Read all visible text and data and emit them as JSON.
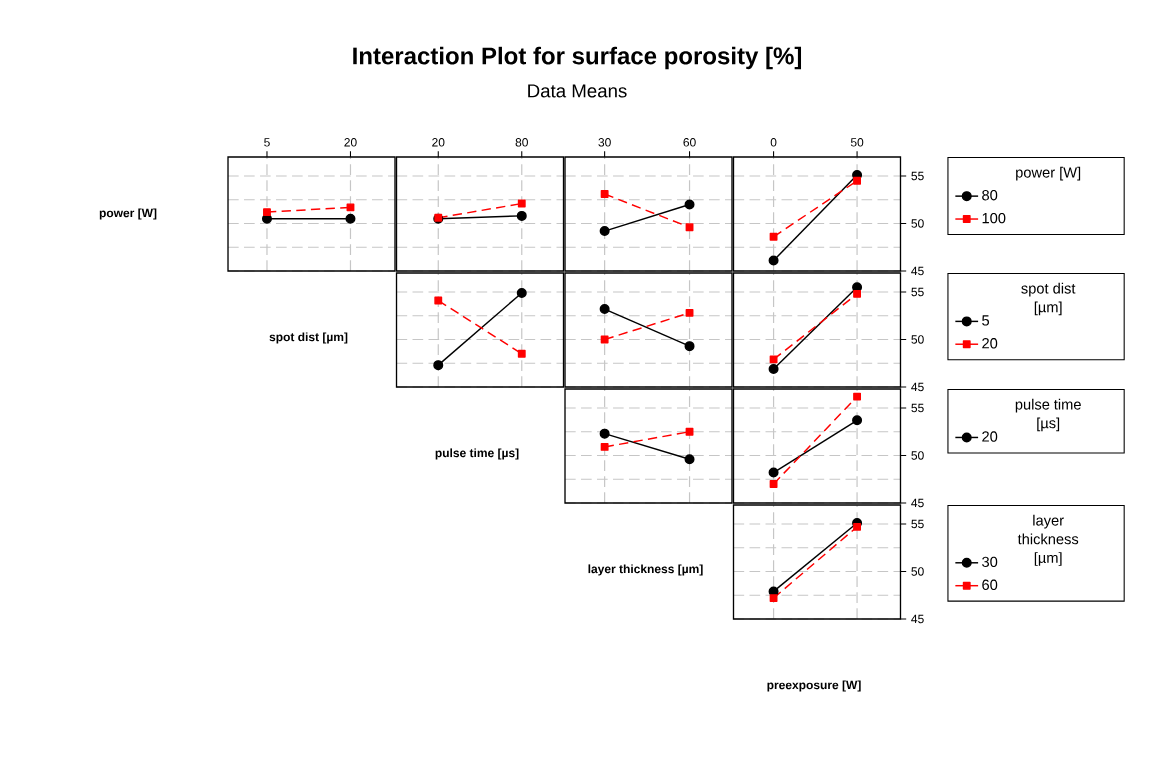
{
  "chart_data": [
    {
      "type": "line",
      "ylabel": "power [W]",
      "xlabel": "spot dist [µm]",
      "x": [
        5,
        20
      ],
      "xlim": [
        -2,
        28
      ],
      "xticks": [
        5,
        20
      ],
      "ylim": [
        45,
        57
      ],
      "yticks": [
        45,
        50,
        55
      ],
      "grid": true,
      "tick_labels": "x",
      "series": [
        {
          "color": "#000000",
          "marker": "circle",
          "line_style": "solid",
          "values": [
            50.5,
            50.5
          ]
        },
        {
          "color": "#ff0000",
          "marker": "square",
          "line_style": "dashed",
          "values": [
            51.2,
            51.7
          ]
        }
      ]
    },
    {
      "type": "line",
      "xlabel": "pulse time [µs]",
      "x": [
        20,
        80
      ],
      "xlim": [
        -10,
        110
      ],
      "xticks": [
        20,
        80
      ],
      "ylim": [
        45,
        57
      ],
      "yticks": [
        45,
        50,
        55
      ],
      "grid": true,
      "tick_labels": "x",
      "series": [
        {
          "color": "#000000",
          "marker": "circle",
          "line_style": "solid",
          "values": [
            50.5,
            50.8
          ]
        },
        {
          "color": "#ff0000",
          "marker": "square",
          "line_style": "dashed",
          "values": [
            50.6,
            52.1
          ]
        }
      ]
    },
    {
      "type": "line",
      "title": "Interaction Plot for surface porosity [%]",
      "subtitle": "Data Means",
      "xlabel": "layer thickness [µm]",
      "x": [
        30,
        60
      ],
      "xlim": [
        16,
        75
      ],
      "xticks": [
        30,
        60
      ],
      "ylim": [
        45,
        57
      ],
      "yticks": [
        45,
        50,
        55
      ],
      "grid": true,
      "tick_labels": "x",
      "series": [
        {
          "color": "#000000",
          "marker": "circle",
          "line_style": "solid",
          "values": [
            49.2,
            52.0
          ]
        },
        {
          "color": "#ff0000",
          "marker": "square",
          "line_style": "dashed",
          "values": [
            53.1,
            49.6
          ]
        }
      ]
    },
    {
      "type": "line",
      "xlabel": "preexposure [W]",
      "legend_title": "power [W]",
      "legend": "right",
      "x": [
        0,
        50
      ],
      "xlim": [
        -24,
        76
      ],
      "xticks": [
        0,
        50
      ],
      "ylim": [
        45,
        57
      ],
      "yticks": [
        45,
        50,
        55
      ],
      "grid": true,
      "series": [
        {
          "name": "80",
          "color": "#000000",
          "marker": "circle",
          "line_style": "solid",
          "values": [
            46.1,
            55.1
          ]
        },
        {
          "name": "100",
          "color": "#ff0000",
          "marker": "square",
          "line_style": "dashed",
          "values": [
            48.6,
            54.5
          ]
        }
      ]
    },
    {
      "type": "line",
      "x": [
        20,
        80
      ],
      "xlim": [
        -10,
        110
      ],
      "xticks": [
        20,
        80
      ],
      "ylim": [
        45,
        57
      ],
      "yticks": [
        45,
        50,
        55
      ],
      "grid": true,
      "tick_labels": false,
      "series": [
        {
          "color": "#000000",
          "marker": "circle",
          "line_style": "solid",
          "values": [
            47.3,
            54.9
          ]
        },
        {
          "color": "#ff0000",
          "marker": "square",
          "line_style": "dashed",
          "values": [
            54.1,
            48.5
          ]
        }
      ]
    },
    {
      "type": "line",
      "x": [
        30,
        60
      ],
      "xlim": [
        16,
        75
      ],
      "xticks": [
        30,
        60
      ],
      "ylim": [
        45,
        57
      ],
      "yticks": [
        45,
        50,
        55
      ],
      "grid": true,
      "tick_labels": false,
      "series": [
        {
          "color": "#000000",
          "marker": "circle",
          "line_style": "solid",
          "values": [
            53.2,
            49.3
          ]
        },
        {
          "color": "#ff0000",
          "marker": "square",
          "line_style": "dashed",
          "values": [
            50.0,
            52.8
          ]
        }
      ]
    },
    {
      "type": "line",
      "legend_title": "spot dist [µm]",
      "legend": "right",
      "x": [
        0,
        50
      ],
      "xlim": [
        -24,
        76
      ],
      "xticks": [
        0,
        50
      ],
      "ylim": [
        45,
        57
      ],
      "yticks": [
        45,
        50,
        55
      ],
      "grid": true,
      "tick_labels": "y",
      "series": [
        {
          "name": "5",
          "color": "#000000",
          "marker": "circle",
          "line_style": "solid",
          "values": [
            46.9,
            55.5
          ]
        },
        {
          "name": "20",
          "color": "#ff0000",
          "marker": "square",
          "line_style": "dashed",
          "values": [
            47.9,
            54.8
          ]
        }
      ]
    },
    {
      "type": "line",
      "x": [
        30,
        60
      ],
      "xlim": [
        16,
        75
      ],
      "xticks": [
        30,
        60
      ],
      "ylim": [
        45,
        57
      ],
      "yticks": [
        45,
        50,
        55
      ],
      "grid": true,
      "tick_labels": false,
      "series": [
        {
          "color": "#000000",
          "marker": "circle",
          "line_style": "solid",
          "values": [
            52.3,
            49.6
          ]
        },
        {
          "color": "#ff0000",
          "marker": "square",
          "line_style": "dashed",
          "values": [
            50.9,
            52.5
          ]
        }
      ]
    },
    {
      "type": "line",
      "legend_title": "pulse time [µs]",
      "legend": "right",
      "x": [
        0,
        50
      ],
      "xlim": [
        -24,
        76
      ],
      "xticks": [
        0,
        50
      ],
      "ylim": [
        45,
        57
      ],
      "yticks": [
        45,
        50,
        55
      ],
      "grid": true,
      "tick_labels": "y",
      "series": [
        {
          "name": "20",
          "color": "#000000",
          "marker": "circle",
          "line_style": "solid",
          "values": [
            48.2,
            53.7
          ]
        },
        {
          "color": "#ff0000",
          "marker": "square",
          "line_style": "dashed",
          "values": [
            47.0,
            56.2
          ]
        }
      ]
    },
    {
      "type": "line",
      "legend_title": "layer thickness [µm]",
      "legend": "right",
      "x": [
        0,
        50
      ],
      "xlim": [
        -24,
        76
      ],
      "xticks": [
        0,
        50
      ],
      "ylim": [
        45,
        57
      ],
      "yticks": [
        45,
        50,
        55
      ],
      "grid": true,
      "tick_labels": "y",
      "series": [
        {
          "name": "30",
          "color": "#000000",
          "marker": "circle",
          "line_style": "solid",
          "values": [
            47.9,
            55.1
          ]
        },
        {
          "name": "60",
          "color": "#ff0000",
          "marker": "square",
          "line_style": "dashed",
          "values": [
            47.2,
            54.7
          ]
        }
      ]
    }
  ]
}
